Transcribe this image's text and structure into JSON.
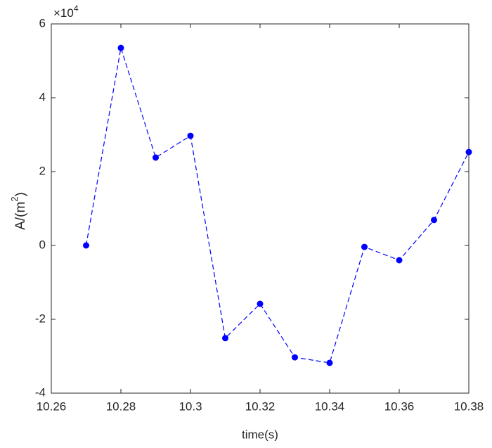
{
  "chart_data": {
    "type": "line",
    "xlabel": "time(s)",
    "ylabel": [
      "A/(m",
      "2",
      ")"
    ],
    "y_exponent": [
      "×10",
      "4"
    ],
    "x": [
      10.27,
      10.28,
      10.29,
      10.3,
      10.31,
      10.32,
      10.33,
      10.34,
      10.35,
      10.36,
      10.37,
      10.38
    ],
    "series": [
      {
        "color": "#0000ff",
        "line_style": "dashed",
        "marker": "circle",
        "values": [
          0,
          5.35,
          2.38,
          2.97,
          -2.51,
          -1.58,
          -3.03,
          -3.18,
          -0.04,
          -0.4,
          0.69,
          2.53
        ]
      }
    ],
    "xlim": [
      10.26,
      10.38
    ],
    "xticks": [
      10.26,
      10.28,
      10.3,
      10.32,
      10.34,
      10.36,
      10.38
    ],
    "ylim": [
      -4,
      6
    ],
    "yticks": [
      -4,
      -2,
      0,
      2,
      4,
      6
    ],
    "grid": false,
    "box": true
  }
}
